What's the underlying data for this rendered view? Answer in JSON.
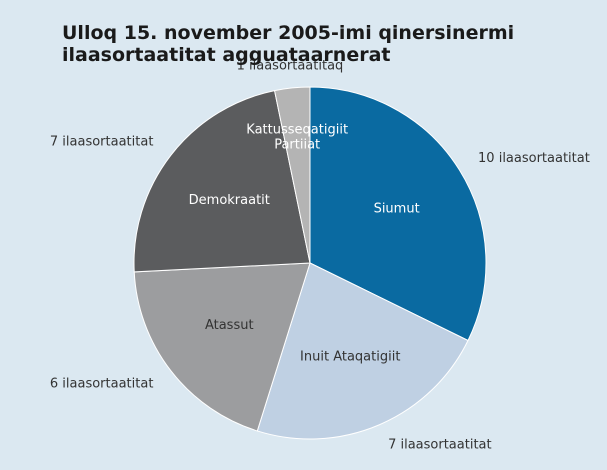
{
  "chart_data": {
    "type": "pie",
    "title": "Ulloq 15. november 2005-imi qinersinermi ilaasortaatitat agguataarnerat",
    "categories": [
      "Siumut",
      "Inuit Ataqatigiit",
      "Atassut",
      "Demokraatit",
      "Kattusseqatigiit Partiiat"
    ],
    "values": [
      10,
      7,
      6,
      7,
      1
    ],
    "value_labels": [
      "10 ilaasortaatitat",
      "7 ilaasortaatitat",
      "6 ilaasortaatitat",
      "7 ilaasortaatitat",
      "1 ilaasortaatitaq"
    ],
    "colors": [
      "#0a6aa1",
      "#bfd0e3",
      "#9c9d9f",
      "#5b5c5e",
      "#b4b4b4"
    ],
    "label_colors": [
      "#ffffff",
      "#333333",
      "#333333",
      "#ffffff",
      "#ffffff"
    ]
  }
}
